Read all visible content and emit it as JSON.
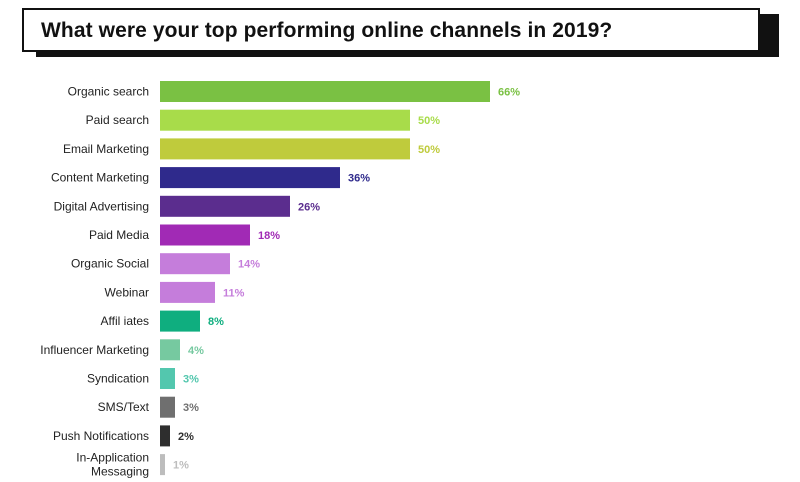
{
  "title": "What were your top performing online channels in 2019?",
  "chart_data": {
    "type": "bar",
    "orientation": "horizontal",
    "title": "What were your top performing online channels in 2019?",
    "xlabel": "",
    "ylabel": "",
    "xlim": [
      0,
      70
    ],
    "grid": false,
    "unit": "%",
    "categories": [
      "Organic search",
      "Paid search",
      "Email Marketing",
      "Content Marketing",
      "Digital Advertising",
      "Paid Media",
      "Organic Social",
      "Webinar",
      "Affil iates",
      "Influencer Marketing",
      "Syndication",
      "SMS/Text",
      "Push Notifications",
      "In-Application Messaging"
    ],
    "values": [
      66,
      50,
      50,
      36,
      26,
      18,
      14,
      11,
      8,
      4,
      3,
      3,
      2,
      1
    ],
    "value_labels": [
      "66%",
      "50%",
      "50%",
      "36%",
      "26%",
      "18%",
      "14%",
      "11%",
      "8%",
      "4%",
      "3%",
      "3%",
      "2%",
      "1%"
    ],
    "colors": [
      "#7ac143",
      "#a8dc4a",
      "#bfcb3c",
      "#2f2a8c",
      "#5b2d8e",
      "#a12ab5",
      "#c57ddb",
      "#c57ddb",
      "#0fae7f",
      "#76c9a0",
      "#53c7ae",
      "#6f6f6f",
      "#2e2e2e",
      "#bdbdbd"
    ],
    "label_colors": [
      "#7ac143",
      "#a8dc4a",
      "#bfcb3c",
      "#2f2a8c",
      "#5b2d8e",
      "#a12ab5",
      "#c57ddb",
      "#c57ddb",
      "#0fae7f",
      "#76c9a0",
      "#53c7ae",
      "#6f6f6f",
      "#2e2e2e",
      "#bdbdbd"
    ]
  }
}
